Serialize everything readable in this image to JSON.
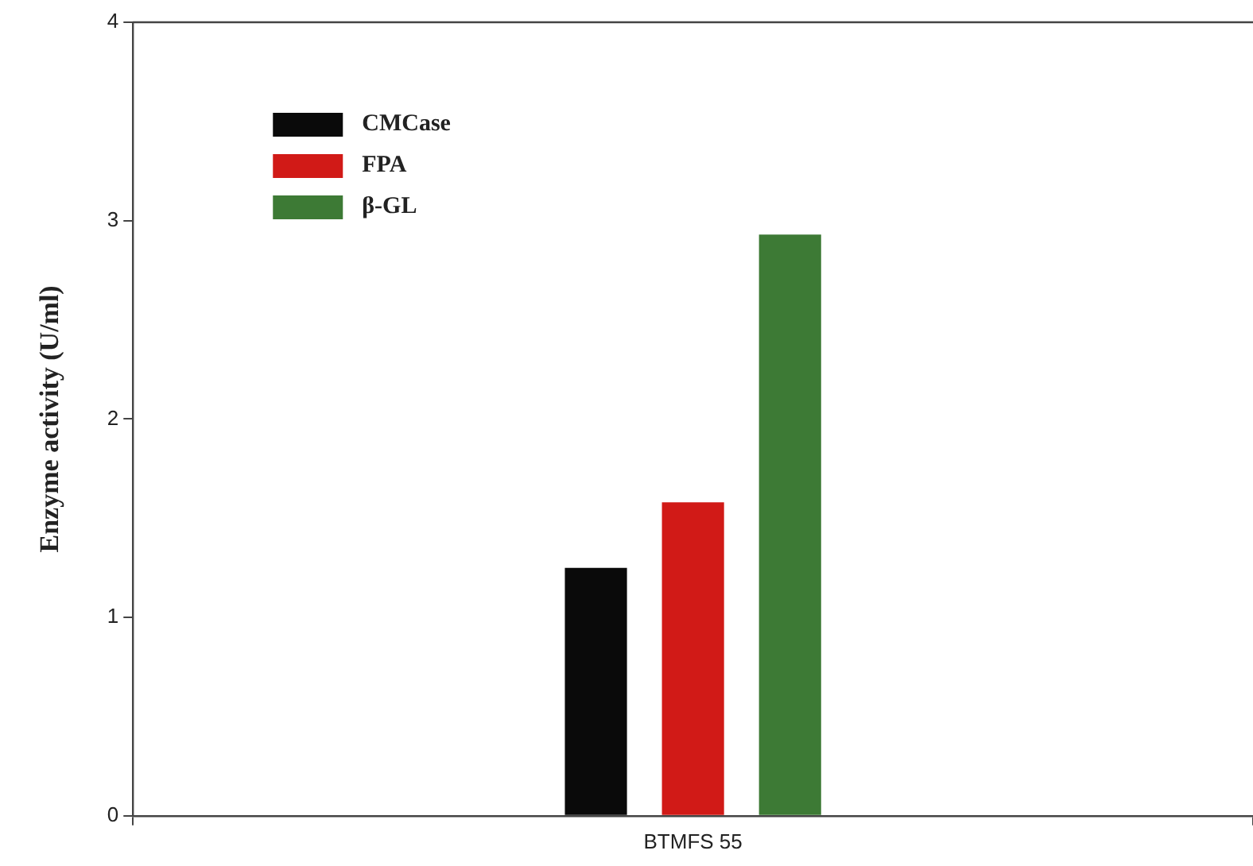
{
  "chart_data": {
    "type": "bar",
    "ylabel": "Enzyme activity (U/ml)",
    "categories": [
      "BTMFS 55"
    ],
    "series": [
      {
        "name": "CMCase",
        "color": "#0a0a0a",
        "values": [
          1.25
        ]
      },
      {
        "name": "FPA",
        "color": "#d11a17",
        "values": [
          1.58
        ]
      },
      {
        "name": "β-GL",
        "color": "#3d7a35",
        "values": [
          2.93
        ]
      }
    ],
    "ylim": [
      0,
      4
    ],
    "yticks": [
      0,
      1,
      2,
      3,
      4
    ],
    "grid": false,
    "legend": "top left"
  }
}
